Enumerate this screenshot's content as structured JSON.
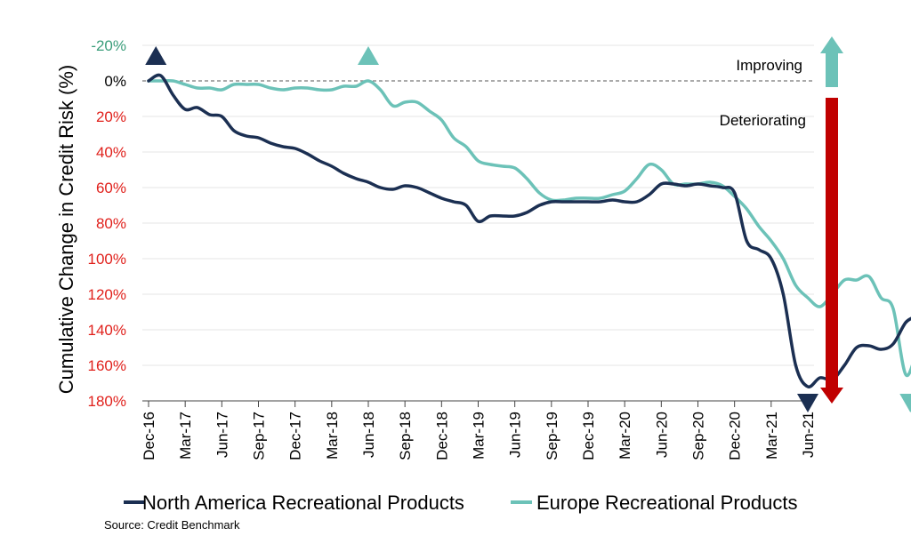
{
  "chart_data": {
    "type": "line",
    "ylabel": "Cumulative Change in Credit Risk (%)",
    "y_axis_inverted": true,
    "ylim": [
      -20,
      180
    ],
    "y_ticks": [
      {
        "value": -20,
        "label": "-20%",
        "color": "#3a9d7a"
      },
      {
        "value": 0,
        "label": "0%",
        "color": "#000000"
      },
      {
        "value": 20,
        "label": "20%",
        "color": "#e0201b"
      },
      {
        "value": 40,
        "label": "40%",
        "color": "#e0201b"
      },
      {
        "value": 60,
        "label": "60%",
        "color": "#e0201b"
      },
      {
        "value": 80,
        "label": "80%",
        "color": "#e0201b"
      },
      {
        "value": 100,
        "label": "100%",
        "color": "#e0201b"
      },
      {
        "value": 120,
        "label": "120%",
        "color": "#e0201b"
      },
      {
        "value": 140,
        "label": "140%",
        "color": "#e0201b"
      },
      {
        "value": 160,
        "label": "160%",
        "color": "#e0201b"
      },
      {
        "value": 180,
        "label": "180%",
        "color": "#e0201b"
      }
    ],
    "x_ticks": [
      "Dec-16",
      "Mar-17",
      "Jun-17",
      "Sep-17",
      "Dec-17",
      "Mar-18",
      "Jun-18",
      "Sep-18",
      "Dec-18",
      "Mar-19",
      "Jun-19",
      "Sep-19",
      "Dec-19",
      "Mar-20",
      "Jun-20",
      "Sep-20",
      "Dec-20",
      "Mar-21",
      "Jun-21"
    ],
    "grid": "horizontal",
    "legend_placement": "bottom",
    "series": [
      {
        "name": "North America Recreational Products",
        "color": "#1b2f52",
        "points": [
          [
            0,
            0
          ],
          [
            0.33,
            -3
          ],
          [
            0.67,
            8
          ],
          [
            1,
            16
          ],
          [
            1.33,
            15
          ],
          [
            1.67,
            19
          ],
          [
            2,
            20
          ],
          [
            2.33,
            28
          ],
          [
            2.67,
            31
          ],
          [
            3,
            32
          ],
          [
            3.33,
            35
          ],
          [
            3.67,
            37
          ],
          [
            4,
            38
          ],
          [
            4.33,
            41
          ],
          [
            4.67,
            45
          ],
          [
            5,
            48
          ],
          [
            5.33,
            52
          ],
          [
            5.67,
            55
          ],
          [
            6,
            57
          ],
          [
            6.33,
            60
          ],
          [
            6.67,
            61
          ],
          [
            7,
            59
          ],
          [
            7.33,
            60
          ],
          [
            7.67,
            63
          ],
          [
            8,
            66
          ],
          [
            8.33,
            68
          ],
          [
            8.67,
            70
          ],
          [
            9,
            79
          ],
          [
            9.33,
            76
          ],
          [
            9.67,
            76
          ],
          [
            10,
            76
          ],
          [
            10.33,
            74
          ],
          [
            10.67,
            70
          ],
          [
            11,
            68
          ],
          [
            11.33,
            68
          ],
          [
            11.67,
            68
          ],
          [
            12,
            68
          ],
          [
            12.33,
            68
          ],
          [
            12.67,
            67
          ],
          [
            13,
            68
          ],
          [
            13.33,
            68
          ],
          [
            13.67,
            64
          ],
          [
            14,
            58
          ],
          [
            14.33,
            58
          ],
          [
            14.67,
            59
          ],
          [
            15,
            58
          ],
          [
            15.33,
            59
          ],
          [
            15.67,
            60
          ],
          [
            16,
            63
          ],
          [
            16.33,
            90
          ],
          [
            16.67,
            95
          ],
          [
            17,
            100
          ],
          [
            17.33,
            120
          ],
          [
            17.67,
            160
          ],
          [
            18,
            172
          ],
          [
            18.33,
            167
          ],
          [
            18.67,
            168
          ],
          [
            19,
            160
          ],
          [
            19.33,
            150
          ],
          [
            19.67,
            149
          ],
          [
            20,
            151
          ],
          [
            20.33,
            148
          ],
          [
            20.67,
            136
          ],
          [
            21,
            130
          ],
          [
            21.33,
            110
          ]
        ]
      },
      {
        "name": "Europe Recreational Products",
        "color": "#6cc2b8",
        "points": [
          [
            0,
            0
          ],
          [
            0.33,
            0
          ],
          [
            0.67,
            0
          ],
          [
            1,
            2
          ],
          [
            1.33,
            4
          ],
          [
            1.67,
            4
          ],
          [
            2,
            5
          ],
          [
            2.33,
            2
          ],
          [
            2.67,
            2
          ],
          [
            3,
            2
          ],
          [
            3.33,
            4
          ],
          [
            3.67,
            5
          ],
          [
            4,
            4
          ],
          [
            4.33,
            4
          ],
          [
            4.67,
            5
          ],
          [
            5,
            5
          ],
          [
            5.33,
            3
          ],
          [
            5.67,
            3
          ],
          [
            6,
            0
          ],
          [
            6.33,
            5
          ],
          [
            6.67,
            14
          ],
          [
            7,
            12
          ],
          [
            7.33,
            12
          ],
          [
            7.67,
            17
          ],
          [
            8,
            22
          ],
          [
            8.33,
            32
          ],
          [
            8.67,
            37
          ],
          [
            9,
            45
          ],
          [
            9.33,
            47
          ],
          [
            9.67,
            48
          ],
          [
            10,
            49
          ],
          [
            10.33,
            55
          ],
          [
            10.67,
            63
          ],
          [
            11,
            67
          ],
          [
            11.33,
            67
          ],
          [
            11.67,
            66
          ],
          [
            12,
            66
          ],
          [
            12.33,
            66
          ],
          [
            12.67,
            64
          ],
          [
            13,
            62
          ],
          [
            13.33,
            55
          ],
          [
            13.67,
            47
          ],
          [
            14,
            50
          ],
          [
            14.33,
            58
          ],
          [
            14.67,
            58
          ],
          [
            15,
            58
          ],
          [
            15.33,
            57
          ],
          [
            15.67,
            59
          ],
          [
            16,
            65
          ],
          [
            16.33,
            72
          ],
          [
            16.67,
            82
          ],
          [
            17,
            90
          ],
          [
            17.33,
            100
          ],
          [
            17.67,
            115
          ],
          [
            18,
            122
          ],
          [
            18.33,
            127
          ],
          [
            18.67,
            120
          ],
          [
            19,
            112
          ],
          [
            19.33,
            112
          ],
          [
            19.67,
            110
          ],
          [
            20,
            122
          ],
          [
            20.33,
            128
          ],
          [
            20.67,
            165
          ],
          [
            21,
            153
          ],
          [
            21.33,
            155
          ]
        ]
      }
    ],
    "markers": [
      {
        "direction": "up",
        "x": 0.2,
        "color": "#1b2f52"
      },
      {
        "direction": "up",
        "x": 6.0,
        "color": "#6cc2b8"
      },
      {
        "direction": "down",
        "x": 18.0,
        "color": "#1b2f52"
      },
      {
        "direction": "down",
        "x": 20.8,
        "color": "#6cc2b8"
      }
    ],
    "annotations": {
      "improving": "Improving",
      "deteriorating": "Deteriorating"
    },
    "arrow_colors": {
      "improving": "#6cc2b8",
      "deteriorating": "#c00000"
    },
    "zero_line": "dashed"
  },
  "source": "Source: Credit Benchmark"
}
